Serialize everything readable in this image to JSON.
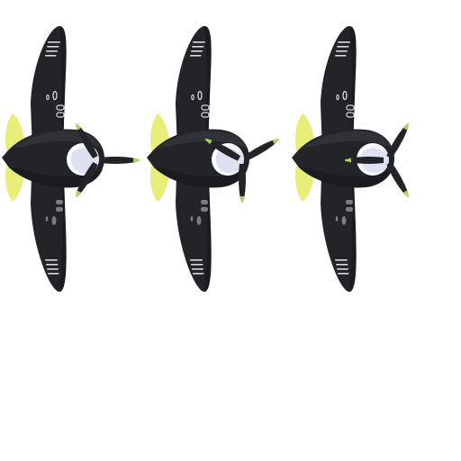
{
  "sprite_sheet": {
    "background_color": "#ffffff",
    "frame_count": 3,
    "colors": {
      "body": "#232428",
      "body_highlight": "#34363c",
      "body_shadow": "#18191c",
      "tail_fin": "#e8ee78",
      "cockpit": "#dde1f1",
      "cockpit_rim": "#ffffff",
      "prop_tip": "#a4d65a",
      "wing_markings": "#d8d8dc",
      "wing_spots": "#7c7d82"
    },
    "frames": [
      {
        "name": "propeller-frame-1",
        "propeller_rotation_deg": 0
      },
      {
        "name": "propeller-frame-2",
        "propeller_rotation_deg": -30
      },
      {
        "name": "propeller-frame-3",
        "propeller_rotation_deg": -60
      }
    ]
  }
}
